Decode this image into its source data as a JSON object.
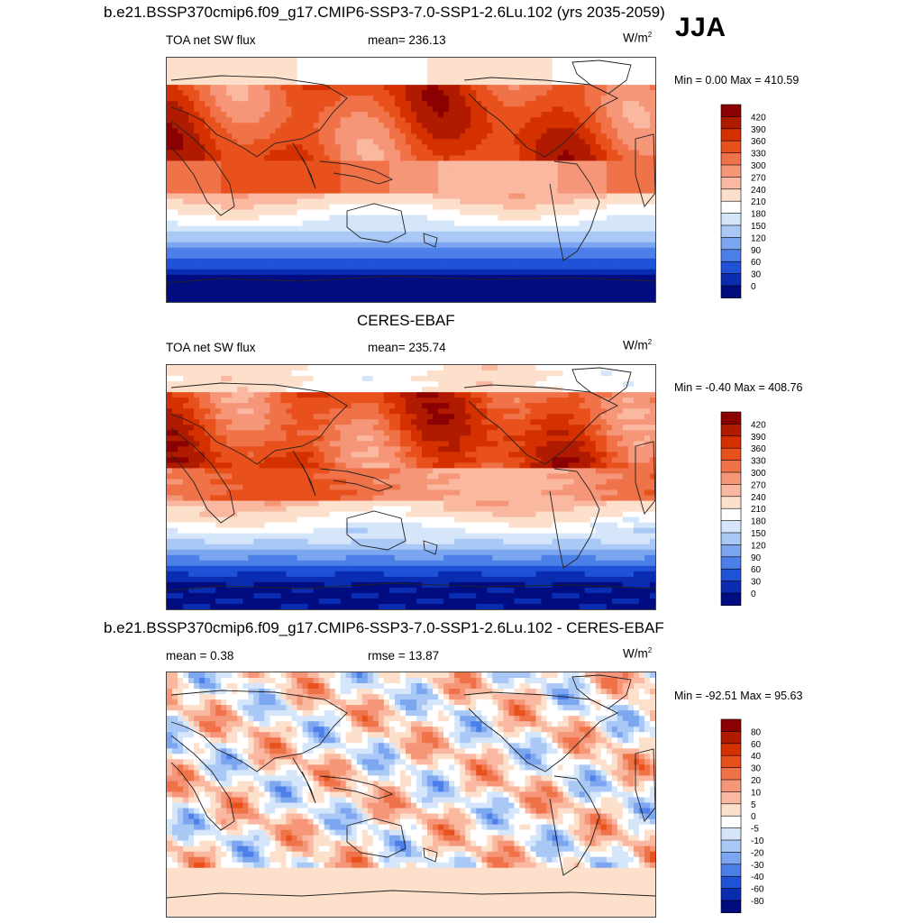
{
  "season": "JJA",
  "panels": [
    {
      "title": "b.e21.BSSP370cmip6.f09_g17.CMIP6-SSP3-7.0-SSP1-2.6Lu.102 (yrs 2035-2059)",
      "left_label": "TOA net SW flux",
      "center_label": "mean= 236.13",
      "units": "W/m",
      "units_sup": "2",
      "minmax": "Min =   0.00 Max = 410.59"
    },
    {
      "title": "CERES-EBAF",
      "left_label": "TOA net SW flux",
      "center_label": "mean= 235.74",
      "units": "W/m",
      "units_sup": "2",
      "minmax": "Min =  -0.40 Max = 408.76"
    },
    {
      "title": "b.e21.BSSP370cmip6.f09_g17.CMIP6-SSP3-7.0-SSP1-2.6Lu.102 - CERES-EBAF",
      "left_label": "mean =   0.38",
      "center_label": "rmse =  13.87",
      "units": "W/m",
      "units_sup": "2",
      "minmax": "Min = -92.51 Max =  95.63"
    }
  ],
  "chart_data": [
    {
      "type": "heatmap",
      "title": "b.e21.BSSP370cmip6.f09_g17.CMIP6-SSP3-7.0-SSP1-2.6Lu.102 (yrs 2035-2059)",
      "variable": "TOA net SW flux",
      "mean": 236.13,
      "min": 0.0,
      "max": 410.59,
      "units": "W/m2",
      "colorbar_levels": [
        420,
        390,
        360,
        330,
        300,
        270,
        240,
        210,
        180,
        150,
        120,
        90,
        60,
        30,
        0
      ],
      "colorbar_colors": [
        "#8b0000",
        "#b01b00",
        "#d43000",
        "#e8501c",
        "#f07248",
        "#f59678",
        "#fab8a0",
        "#fde0cc",
        "#ffffff",
        "#d5e6fb",
        "#a9c8f6",
        "#7ca6f0",
        "#4d7fe8",
        "#1f52d6",
        "#0a2cb0",
        "#000c80"
      ]
    },
    {
      "type": "heatmap",
      "title": "CERES-EBAF",
      "variable": "TOA net SW flux",
      "mean": 235.74,
      "min": -0.4,
      "max": 408.76,
      "units": "W/m2",
      "colorbar_levels": [
        420,
        390,
        360,
        330,
        300,
        270,
        240,
        210,
        180,
        150,
        120,
        90,
        60,
        30,
        0
      ],
      "colorbar_colors": [
        "#8b0000",
        "#b01b00",
        "#d43000",
        "#e8501c",
        "#f07248",
        "#f59678",
        "#fab8a0",
        "#fde0cc",
        "#ffffff",
        "#d5e6fb",
        "#a9c8f6",
        "#7ca6f0",
        "#4d7fe8",
        "#1f52d6",
        "#0a2cb0",
        "#000c80"
      ]
    },
    {
      "type": "heatmap",
      "title": "b.e21.BSSP370cmip6.f09_g17.CMIP6-SSP3-7.0-SSP1-2.6Lu.102 - CERES-EBAF",
      "mean": 0.38,
      "rmse": 13.87,
      "min": -92.51,
      "max": 95.63,
      "units": "W/m2",
      "colorbar_levels": [
        80,
        60,
        40,
        30,
        20,
        10,
        5,
        0,
        -5,
        -10,
        -20,
        -30,
        -40,
        -60,
        -80
      ],
      "colorbar_colors": [
        "#8b0000",
        "#b01b00",
        "#d43000",
        "#e8501c",
        "#f07248",
        "#f59678",
        "#fab8a0",
        "#fde0cc",
        "#ffffff",
        "#d5e6fb",
        "#a9c8f6",
        "#7ca6f0",
        "#4d7fe8",
        "#1f52d6",
        "#0a2cb0",
        "#000c80"
      ]
    }
  ]
}
